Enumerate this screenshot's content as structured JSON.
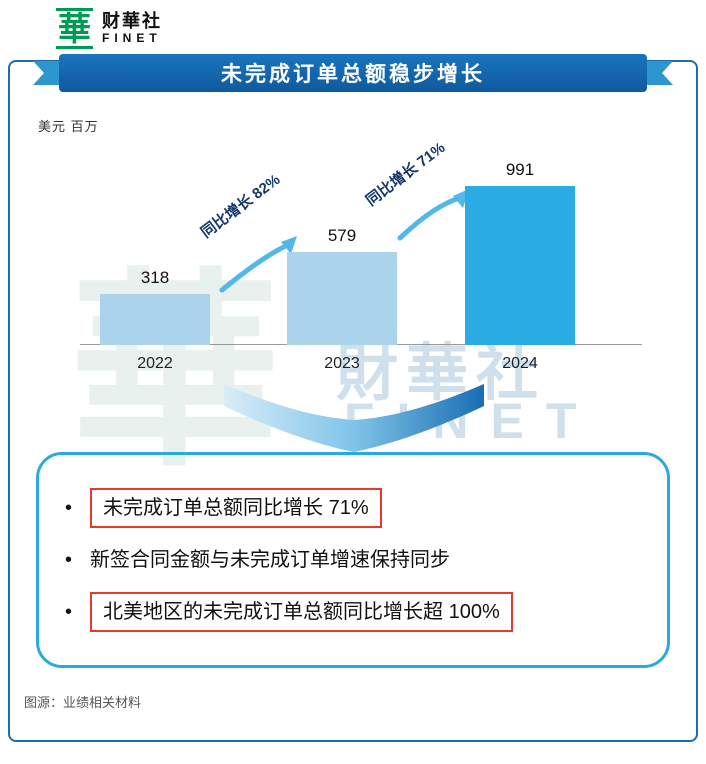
{
  "logo": {
    "glyph": "華",
    "brand_cn": "财華社",
    "brand_en": "FINET"
  },
  "banner": {
    "title": "未完成订单总额稳步增长"
  },
  "unit_label": "美元 百万",
  "chart_data": {
    "type": "bar",
    "title": "未完成订单总额稳步增长",
    "unit": "美元 百万",
    "categories": [
      "2022",
      "2023",
      "2024"
    ],
    "values": [
      318,
      579,
      991
    ],
    "bar_colors": [
      "#abd4ec",
      "#abd4ec",
      "#2aabe3"
    ],
    "ylim": [
      0,
      1100
    ],
    "grid": false,
    "annotations": [
      {
        "text": "同比增长 82%",
        "between": [
          "2022",
          "2023"
        ]
      },
      {
        "text": "同比增长 71%",
        "between": [
          "2023",
          "2024"
        ]
      }
    ]
  },
  "watermark": {
    "glyph": "華",
    "text_cn": "財華社",
    "text_en": "FINET"
  },
  "bullets": [
    {
      "text": "未完成订单总额同比增长 71%",
      "highlighted": true
    },
    {
      "text": "新签合同金额与未完成订单增速保持同步",
      "highlighted": false
    },
    {
      "text": "北美地区的未完成订单总额同比增长超 100%",
      "highlighted": true
    }
  ],
  "footer": {
    "source": "图源：业绩相关材料"
  },
  "colors": {
    "banner_blue": "#1266ad",
    "box_border_blue": "#2aa9e1",
    "highlight_red": "#e8392e",
    "bar_light": "#abd4ec",
    "bar_dark": "#2aabe3",
    "logo_green": "#009a57"
  }
}
